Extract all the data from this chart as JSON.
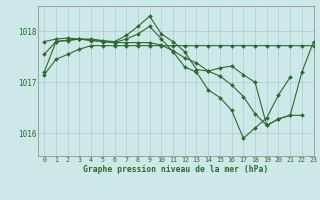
{
  "title": "Graphe pression niveau de la mer (hPa)",
  "background_color": "#cce8e8",
  "grid_color": "#aacccc",
  "line_color": "#2d6a2d",
  "xlim": [
    -0.5,
    23
  ],
  "ylim": [
    1015.55,
    1018.5
  ],
  "yticks": [
    1016,
    1017,
    1018
  ],
  "xticks": [
    0,
    1,
    2,
    3,
    4,
    5,
    6,
    7,
    8,
    9,
    10,
    11,
    12,
    13,
    14,
    15,
    16,
    17,
    18,
    19,
    20,
    21,
    22,
    23
  ],
  "figwidth": 3.2,
  "figheight": 2.0,
  "dpi": 100,
  "series": [
    [
      1017.15,
      1017.45,
      1017.55,
      1017.65,
      1017.72,
      1017.72,
      1017.72,
      1017.72,
      1017.72,
      1017.72,
      1017.72,
      1017.72,
      1017.72,
      1017.72,
      1017.72,
      1017.72,
      1017.72,
      1017.72,
      1017.72,
      1017.72,
      1017.72,
      1017.72,
      1017.72,
      1017.72
    ],
    [
      1017.55,
      1017.8,
      1017.82,
      1017.85,
      1017.82,
      1017.8,
      1017.78,
      1017.85,
      1017.95,
      1018.1,
      1017.85,
      1017.6,
      1017.3,
      1017.2,
      1016.85,
      1016.7,
      1016.45,
      1015.9,
      1016.1,
      1016.3,
      1016.75,
      1017.1,
      null,
      null
    ],
    [
      1017.8,
      1017.85,
      1017.87,
      1017.85,
      1017.85,
      1017.82,
      1017.8,
      1017.92,
      1018.1,
      1018.3,
      1017.95,
      1017.8,
      1017.6,
      1017.25,
      1017.22,
      1017.28,
      1017.32,
      1017.15,
      1017.0,
      1016.15,
      1016.28,
      1016.35,
      1017.2,
      1017.8
    ],
    [
      1017.2,
      1017.8,
      1017.83,
      1017.85,
      1017.83,
      1017.8,
      1017.78,
      1017.78,
      1017.78,
      1017.78,
      1017.73,
      1017.62,
      1017.48,
      1017.38,
      1017.22,
      1017.12,
      1016.95,
      1016.72,
      1016.38,
      1016.15,
      1016.28,
      1016.35,
      1016.35,
      null
    ]
  ]
}
